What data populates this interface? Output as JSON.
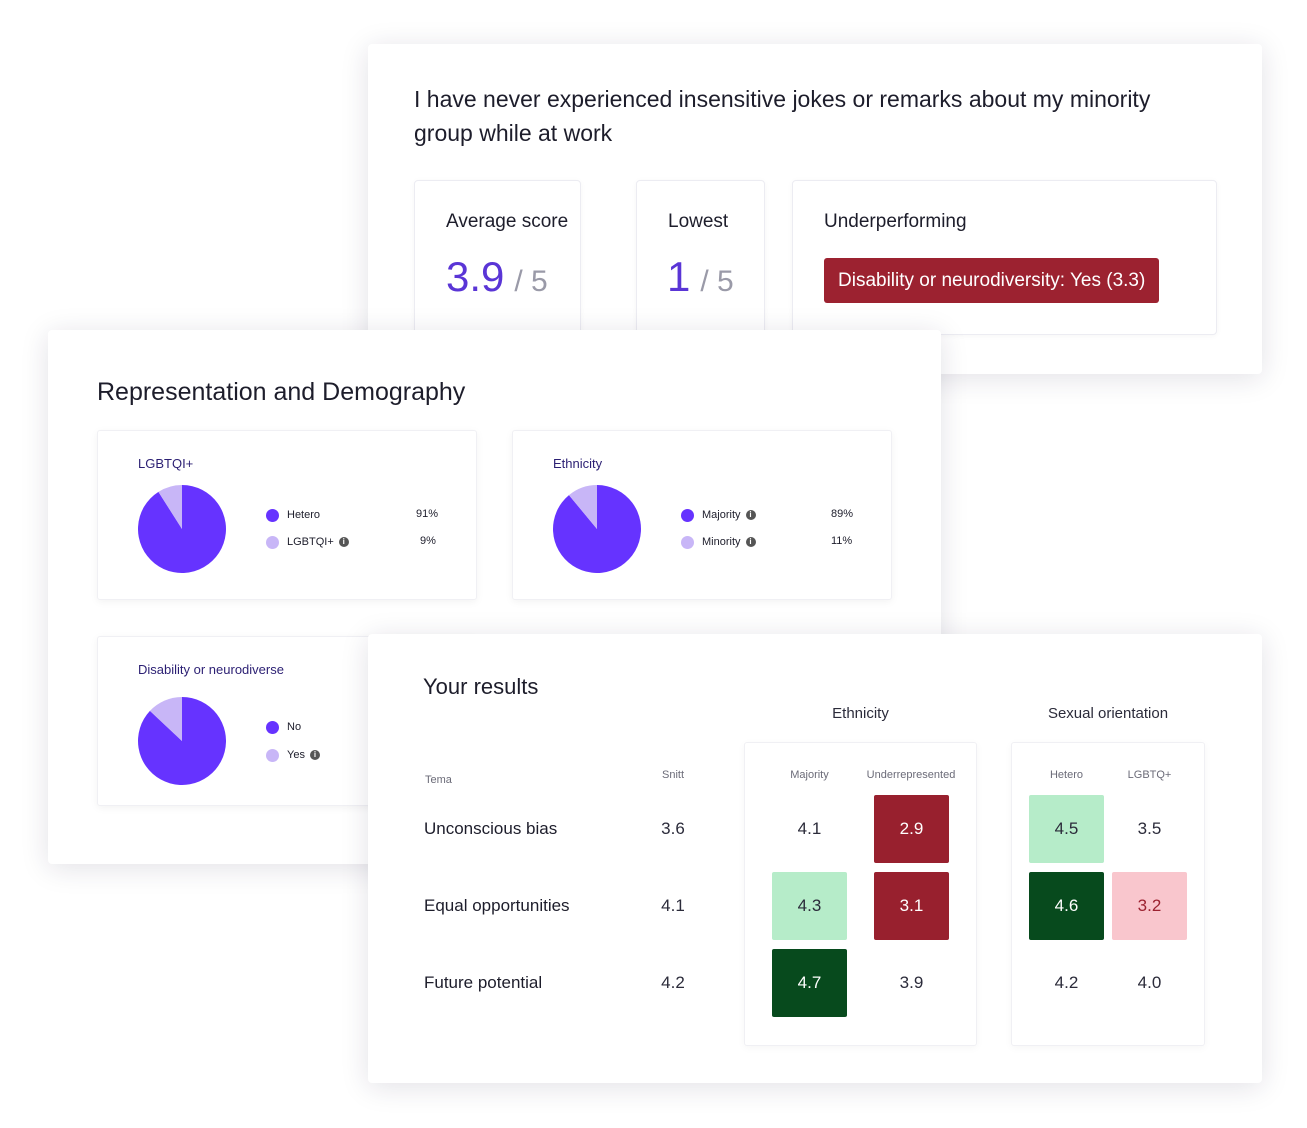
{
  "question": {
    "title": "I have never experienced insensitive jokes or remarks about my minority group while at work",
    "average": {
      "label": "Average score",
      "value": "3.9",
      "of": "/ 5"
    },
    "lowest": {
      "label": "Lowest",
      "value": "1",
      "of": "/ 5"
    },
    "underperforming": {
      "label": "Underperforming",
      "badge": "Disability or neurodiversity: Yes (3.3)"
    }
  },
  "representation": {
    "title": "Representation and Demography",
    "charts": [
      {
        "title": "LGBTQI+",
        "items": [
          {
            "label": "Hetero",
            "value": 91,
            "display": "91%",
            "info": false
          },
          {
            "label": "LGBTQI+",
            "value": 9,
            "display": "9%",
            "info": true
          }
        ]
      },
      {
        "title": "Ethnicity",
        "items": [
          {
            "label": "Majority",
            "value": 89,
            "display": "89%",
            "info": true
          },
          {
            "label": "Minority",
            "value": 11,
            "display": "11%",
            "info": true
          }
        ]
      },
      {
        "title": "Disability or neurodiverse",
        "items": [
          {
            "label": "No",
            "value": 87,
            "display": "",
            "info": false
          },
          {
            "label": "Yes",
            "value": 13,
            "display": "",
            "info": true
          }
        ]
      }
    ]
  },
  "results": {
    "title": "Your results",
    "groups": {
      "ethnicity": "Ethnicity",
      "sexual_orientation": "Sexual orientation"
    },
    "headers": {
      "tema": "Tema",
      "snitt": "Snitt",
      "majority": "Majority",
      "underrepresented": "Underrepresented",
      "hetero": "Hetero",
      "lgbtq": "LGBTQ+"
    },
    "rows": [
      {
        "label": "Unconscious bias",
        "snitt": "3.6",
        "majority": "4.1",
        "underrepresented": "2.9",
        "hetero": "4.5",
        "lgbtq": "3.5"
      },
      {
        "label": "Equal opportunities",
        "snitt": "4.1",
        "majority": "4.3",
        "underrepresented": "3.1",
        "hetero": "4.6",
        "lgbtq": "3.2"
      },
      {
        "label": "Future potential",
        "snitt": "4.2",
        "majority": "4.7",
        "underrepresented": "3.9",
        "hetero": "4.2",
        "lgbtq": "4.0"
      }
    ]
  },
  "colors": {
    "primary": "#6633ff",
    "secondary": "#c8b6f7",
    "score": "#5a35d6",
    "badge": "#9c2230",
    "dark_red": "#98202e",
    "dark_green": "#074a1d",
    "light_green": "#b6ecc9",
    "light_red": "#f9c6cd"
  }
}
